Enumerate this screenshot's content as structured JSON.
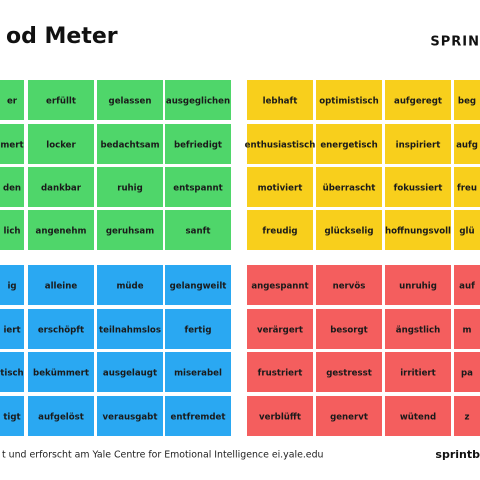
{
  "header": {
    "title": "od Meter",
    "brand": "SPRIN"
  },
  "quadrants": [
    {
      "color": "#4fd66a",
      "rows": [
        [
          "er",
          "erfüllt",
          "gelassen",
          "ausgeglichen"
        ],
        [
          "mert",
          "locker",
          "bedachtsam",
          "befriedigt"
        ],
        [
          "den",
          "dankbar",
          "ruhig",
          "entspannt"
        ],
        [
          "lich",
          "angenehm",
          "geruhsam",
          "sanft"
        ]
      ]
    },
    {
      "color": "#f8cf1c",
      "rows": [
        [
          "lebhaft",
          "optimistisch",
          "aufgeregt",
          "beg"
        ],
        [
          "enthusiastisch",
          "energetisch",
          "inspiriert",
          "aufg"
        ],
        [
          "motiviert",
          "überrascht",
          "fokussiert",
          "freu"
        ],
        [
          "freudig",
          "glückselig",
          "hoffnungsvoll",
          "glü"
        ]
      ]
    },
    {
      "color": "#2aa8f2",
      "rows": [
        [
          "ig",
          "alleine",
          "müde",
          "gelangweilt"
        ],
        [
          "iert",
          "erschöpft",
          "teilnahmslos",
          "fertig"
        ],
        [
          "tisch",
          "bekümmert",
          "ausgelaugt",
          "miserabel"
        ],
        [
          "tigt",
          "aufgelöst",
          "verausgabt",
          "entfremdet"
        ]
      ]
    },
    {
      "color": "#f45e5e",
      "rows": [
        [
          "angespannt",
          "nervös",
          "unruhig",
          "auf"
        ],
        [
          "verärgert",
          "besorgt",
          "ängstlich",
          "m"
        ],
        [
          "frustriert",
          "gestresst",
          "irritiert",
          "pa"
        ],
        [
          "verblüfft",
          "genervt",
          "wütend",
          "z"
        ]
      ]
    }
  ],
  "footer": {
    "credit": "t und erforscht am Yale Centre for Emotional Intelligence ei.yale.edu",
    "brand": "sprintb"
  }
}
